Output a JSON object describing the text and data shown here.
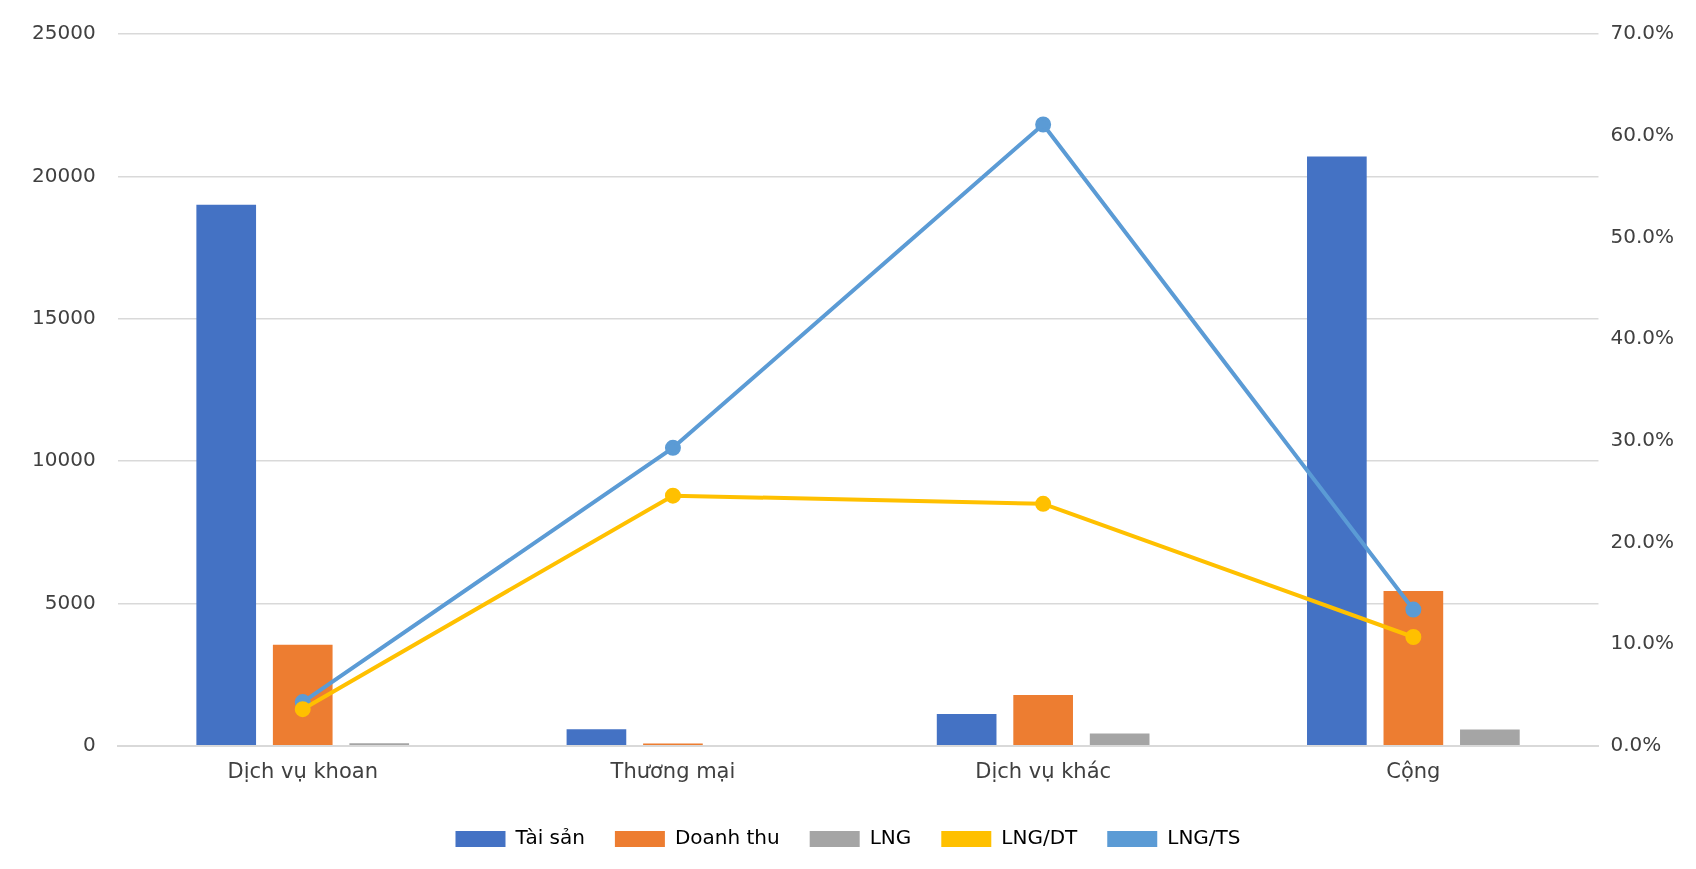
{
  "chart_data": {
    "type": "bar",
    "categories": [
      "Dịch vụ khoan",
      "Thương mại",
      "Dịch vụ khác",
      "Cộng"
    ],
    "series": [
      {
        "name": "Tài sản",
        "color": "#4472c4",
        "values": [
          19000,
          580,
          1120,
          20700
        ]
      },
      {
        "name": "Doanh thu",
        "color": "#ed7d31",
        "values": [
          3550,
          80,
          1780,
          5440
        ]
      },
      {
        "name": "LNG",
        "color": "#a5a5a5",
        "values": [
          90,
          null,
          430,
          570
        ]
      },
      {
        "name": "LNG/DT",
        "type": "line",
        "axis": "y2",
        "color": "#ffc000",
        "values": [
          3.6,
          24.6,
          23.8,
          10.7
        ]
      },
      {
        "name": "LNG/TS",
        "type": "line",
        "axis": "y2",
        "color": "#5b9bd5",
        "values": [
          4.3,
          29.3,
          61.1,
          13.4
        ]
      }
    ],
    "ylim": [
      0,
      25000
    ],
    "yticks": [
      0,
      5000,
      10000,
      15000,
      20000,
      25000
    ],
    "y2lim": [
      0,
      70
    ],
    "y2ticks": [
      {
        "value": 0,
        "label": "0.0%"
      },
      {
        "value": 10,
        "label": "10.0%"
      },
      {
        "value": 20,
        "label": "20.0%"
      },
      {
        "value": 30,
        "label": "30.0%"
      },
      {
        "value": 40,
        "label": "40.0%"
      },
      {
        "value": 50,
        "label": "50.0%"
      },
      {
        "value": 60,
        "label": "60.0%"
      },
      {
        "value": 70,
        "label": "70.0%"
      }
    ],
    "grid": "y",
    "legend": "bottom",
    "marker": "circle"
  }
}
